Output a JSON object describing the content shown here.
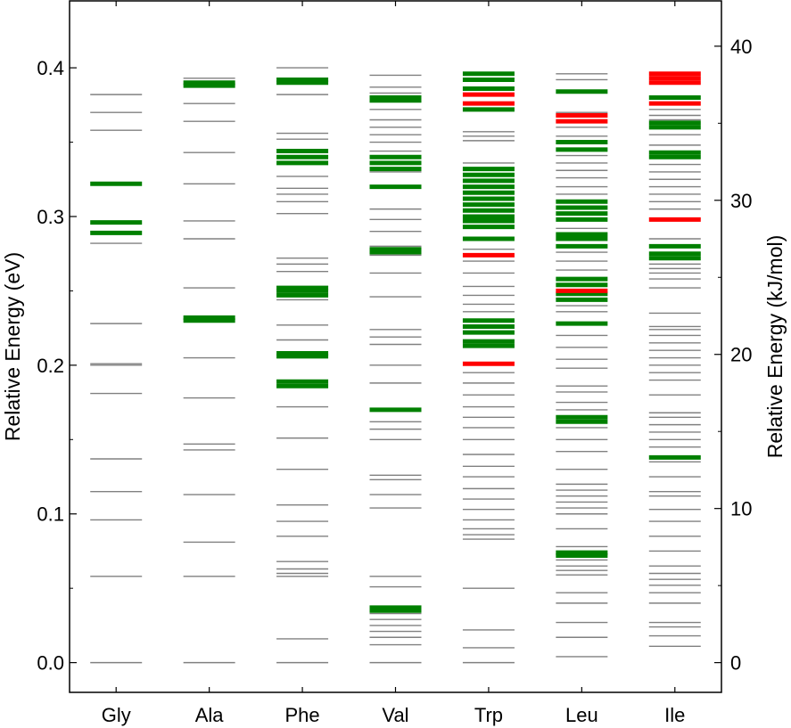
{
  "chart_data": {
    "type": "energy_levels",
    "title": "",
    "xlabel": "",
    "ylabel": "Relative Energy (eV)",
    "y2label": "Relative Energy (kJ/mol)",
    "ylim": [
      -0.02,
      0.445
    ],
    "y2lim": [
      -1.93,
      42.94
    ],
    "yticks": [
      "0.0",
      "0.1",
      "0.2",
      "0.3",
      "0.4"
    ],
    "y2ticks": [
      "0",
      "10",
      "20",
      "30",
      "40"
    ],
    "categories": [
      "Gly",
      "Ala",
      "Phe",
      "Val",
      "Trp",
      "Leu",
      "Ile"
    ],
    "series_colors": {
      "gray": "#808080",
      "green": "#008000",
      "red": "#ff0000"
    },
    "levels": {
      "Gly": {
        "gray": [
          0.0,
          0.058,
          0.096,
          0.115,
          0.137,
          0.181,
          0.2,
          0.201,
          0.228,
          0.282,
          0.358,
          0.37,
          0.382
        ],
        "green": [
          0.289,
          0.296,
          0.322
        ],
        "red": []
      },
      "Ala": {
        "gray": [
          0.0,
          0.058,
          0.081,
          0.113,
          0.143,
          0.147,
          0.178,
          0.205,
          0.252,
          0.285,
          0.297,
          0.322,
          0.343,
          0.364,
          0.376,
          0.393
        ],
        "green": [
          0.23,
          0.232,
          0.388,
          0.39
        ],
        "red": []
      },
      "Phe": {
        "gray": [
          0.0,
          0.016,
          0.058,
          0.06,
          0.063,
          0.068,
          0.085,
          0.095,
          0.106,
          0.13,
          0.151,
          0.172,
          0.217,
          0.227,
          0.244,
          0.253,
          0.263,
          0.268,
          0.272,
          0.302,
          0.31,
          0.315,
          0.319,
          0.327,
          0.352,
          0.356,
          0.382,
          0.4
        ],
        "green": [
          0.186,
          0.189,
          0.206,
          0.208,
          0.247,
          0.25,
          0.252,
          0.336,
          0.34,
          0.344,
          0.39,
          0.392
        ],
        "red": []
      },
      "Val": {
        "gray": [
          0.0,
          0.012,
          0.017,
          0.021,
          0.025,
          0.029,
          0.033,
          0.051,
          0.058,
          0.104,
          0.113,
          0.123,
          0.126,
          0.15,
          0.157,
          0.162,
          0.188,
          0.2,
          0.214,
          0.219,
          0.224,
          0.246,
          0.262,
          0.274,
          0.28,
          0.29,
          0.298,
          0.305,
          0.33,
          0.344,
          0.35,
          0.355,
          0.36,
          0.365,
          0.372,
          0.383,
          0.387,
          0.395
        ],
        "green": [
          0.035,
          0.037,
          0.17,
          0.276,
          0.278,
          0.32,
          0.332,
          0.336,
          0.34,
          0.378,
          0.38
        ],
        "red": []
      },
      "Trp": {
        "gray": [
          0.0,
          0.01,
          0.022,
          0.05,
          0.083,
          0.086,
          0.09,
          0.096,
          0.103,
          0.11,
          0.117,
          0.125,
          0.132,
          0.14,
          0.15,
          0.158,
          0.165,
          0.172,
          0.18,
          0.188,
          0.195,
          0.236,
          0.241,
          0.247,
          0.253,
          0.262,
          0.27,
          0.278,
          0.336,
          0.351,
          0.354,
          0.357
        ],
        "green": [
          0.213,
          0.216,
          0.222,
          0.226,
          0.23,
          0.285,
          0.293,
          0.297,
          0.3,
          0.304,
          0.308,
          0.312,
          0.316,
          0.32,
          0.324,
          0.328,
          0.332,
          0.372,
          0.386,
          0.392,
          0.396
        ],
        "red": [
          0.201,
          0.274,
          0.376,
          0.382
        ]
      },
      "Leu": {
        "gray": [
          0.004,
          0.017,
          0.027,
          0.04,
          0.047,
          0.059,
          0.062,
          0.065,
          0.069,
          0.078,
          0.09,
          0.1,
          0.104,
          0.108,
          0.112,
          0.116,
          0.12,
          0.13,
          0.142,
          0.15,
          0.158,
          0.17,
          0.175,
          0.182,
          0.186,
          0.198,
          0.204,
          0.212,
          0.22,
          0.236,
          0.24,
          0.264,
          0.27,
          0.276,
          0.292,
          0.315,
          0.32,
          0.326,
          0.331,
          0.336,
          0.341,
          0.354,
          0.36,
          0.37,
          0.392,
          0.396
        ],
        "green": [
          0.072,
          0.074,
          0.162,
          0.165,
          0.228,
          0.244,
          0.248,
          0.254,
          0.258,
          0.28,
          0.285,
          0.288,
          0.298,
          0.302,
          0.306,
          0.31,
          0.345,
          0.35,
          0.384
        ],
        "red": [
          0.25,
          0.364,
          0.368
        ]
      },
      "Ile": {
        "gray": [
          0.011,
          0.018,
          0.024,
          0.027,
          0.04,
          0.047,
          0.052,
          0.056,
          0.06,
          0.065,
          0.075,
          0.085,
          0.095,
          0.103,
          0.112,
          0.115,
          0.125,
          0.135,
          0.145,
          0.15,
          0.155,
          0.16,
          0.165,
          0.168,
          0.18,
          0.19,
          0.195,
          0.2,
          0.205,
          0.21,
          0.215,
          0.22,
          0.224,
          0.226,
          0.235,
          0.252,
          0.258,
          0.262,
          0.265,
          0.268,
          0.285,
          0.305,
          0.31,
          0.315,
          0.32,
          0.325,
          0.33,
          0.335,
          0.348,
          0.355,
          0.365,
          0.368,
          0.372
        ],
        "green": [
          0.138,
          0.272,
          0.275,
          0.28,
          0.34,
          0.343,
          0.36,
          0.363,
          0.38
        ],
        "red": [
          0.298,
          0.376,
          0.39,
          0.393,
          0.396
        ]
      }
    }
  }
}
